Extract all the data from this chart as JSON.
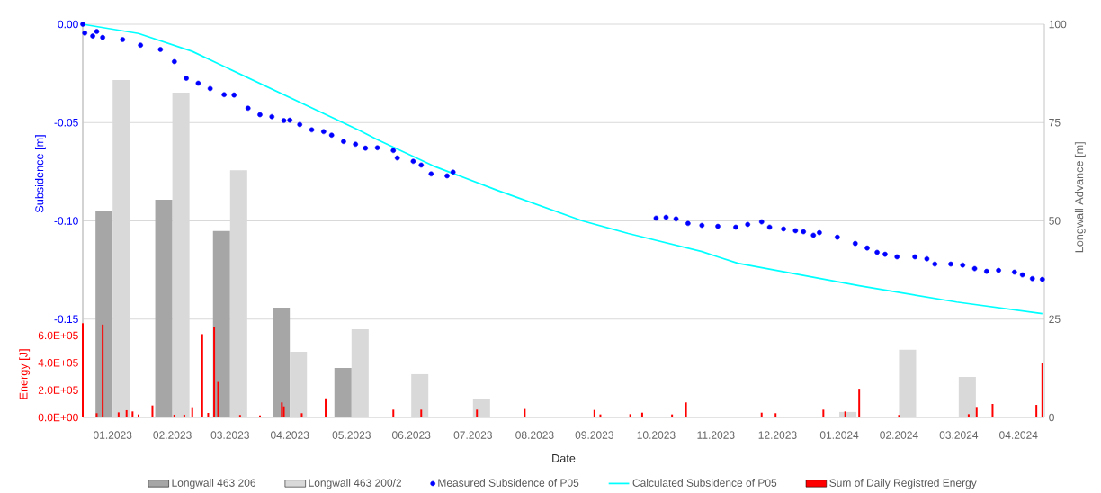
{
  "chart_data": {
    "type": "bar",
    "xlabel": "Date",
    "ylabel": "Subsidence [m]",
    "y2label": "Longwall Advance [m]",
    "y3label": "Energy [J]",
    "xlim": [
      "2023-01-01",
      "2024-04-28"
    ],
    "xticks": [
      {
        "value": "2023-01-16",
        "label": "01.2023"
      },
      {
        "value": "2023-02-15",
        "label": "02.2023"
      },
      {
        "value": "2023-03-16",
        "label": "03.2023"
      },
      {
        "value": "2023-04-15",
        "label": "04.2023"
      },
      {
        "value": "2023-05-16",
        "label": "05.2023"
      },
      {
        "value": "2023-06-15",
        "label": "06.2023"
      },
      {
        "value": "2023-07-16",
        "label": "07.2023"
      },
      {
        "value": "2023-08-16",
        "label": "08.2023"
      },
      {
        "value": "2023-09-15",
        "label": "09.2023"
      },
      {
        "value": "2023-10-16",
        "label": "10.2023"
      },
      {
        "value": "2023-11-15",
        "label": "11.2023"
      },
      {
        "value": "2023-12-16",
        "label": "12.2023"
      },
      {
        "value": "2024-01-16",
        "label": "01.2024"
      },
      {
        "value": "2024-02-15",
        "label": "02.2024"
      },
      {
        "value": "2024-03-16",
        "label": "03.2024"
      },
      {
        "value": "2024-04-15",
        "label": "04.2024"
      }
    ],
    "ylim": [
      -0.2,
      0
    ],
    "yticks": [
      {
        "value": 0,
        "label": "0.00"
      },
      {
        "value": -0.05,
        "label": "-0.05"
      },
      {
        "value": -0.1,
        "label": "-0.10"
      },
      {
        "value": -0.15,
        "label": "-0.15"
      }
    ],
    "y2lim": [
      0,
      100
    ],
    "y2ticks": [
      0,
      25,
      50,
      75,
      100
    ],
    "y3lim": [
      0,
      2880000
    ],
    "y3ticks": [
      {
        "value": 0,
        "label": "0.0E+00"
      },
      {
        "value": 200000,
        "label": "2.0E+05"
      },
      {
        "value": 400000,
        "label": "4.0E+05"
      },
      {
        "value": 600000,
        "label": "6.0E+05"
      }
    ],
    "grid": "y",
    "legend": "bottom",
    "series": [
      {
        "name": "Longwall 463 206",
        "axis": "y2",
        "color": "#a6a6a6",
        "x": [
          "2023-01-16",
          "2023-02-15",
          "2023-03-16",
          "2023-04-15",
          "2023-05-16"
        ],
        "values": [
          52.4,
          55.4,
          47.4,
          27.9,
          12.6
        ]
      },
      {
        "name": "Longwall 463 200/2",
        "axis": "y2",
        "color": "#d9d9d9",
        "x": [
          "2023-01-16",
          "2023-02-15",
          "2023-03-16",
          "2023-04-15",
          "2023-05-16",
          "2023-06-15",
          "2023-07-16",
          "2023-08-16",
          "2023-09-15",
          "2023-10-16",
          "2023-11-15",
          "2023-12-16",
          "2024-01-16",
          "2024-02-15",
          "2024-03-16"
        ],
        "values": [
          85.8,
          82.6,
          62.9,
          16.7,
          22.4,
          11.0,
          4.6,
          null,
          null,
          null,
          null,
          null,
          1.4,
          17.2,
          10.3
        ]
      },
      {
        "name": "Measured Subsidence of P05",
        "type": "scatter",
        "axis": "y",
        "color": "#0000ff",
        "marker": "circle",
        "x": [
          "2023-01-01",
          "2023-01-02",
          "2023-01-06",
          "2023-01-08",
          "2023-01-11",
          "2023-01-21",
          "2023-01-30",
          "2023-02-09",
          "2023-02-16",
          "2023-02-22",
          "2023-02-28",
          "2023-03-06",
          "2023-03-13",
          "2023-03-18",
          "2023-03-25",
          "2023-03-31",
          "2023-04-06",
          "2023-04-12",
          "2023-04-15",
          "2023-04-20",
          "2023-04-26",
          "2023-05-02",
          "2023-05-06",
          "2023-05-12",
          "2023-05-18",
          "2023-05-23",
          "2023-05-29",
          "2023-06-06",
          "2023-06-08",
          "2023-06-16",
          "2023-06-20",
          "2023-06-25",
          "2023-07-03",
          "2023-07-06",
          "2023-10-16",
          "2023-10-21",
          "2023-10-26",
          "2023-11-01",
          "2023-11-08",
          "2023-11-16",
          "2023-11-25",
          "2023-12-01",
          "2023-12-08",
          "2023-12-12",
          "2023-12-19",
          "2023-12-25",
          "2023-12-29",
          "2024-01-03",
          "2024-01-06",
          "2024-01-15",
          "2024-01-24",
          "2024-01-30",
          "2024-02-04",
          "2024-02-08",
          "2024-02-14",
          "2024-02-23",
          "2024-02-29",
          "2024-03-04",
          "2024-03-12",
          "2024-03-18",
          "2024-03-24",
          "2024-03-30",
          "2024-04-05",
          "2024-04-13",
          "2024-04-17",
          "2024-04-22",
          "2024-04-27"
        ],
        "values": [
          0,
          -0.0045,
          -0.006,
          -0.0037,
          -0.0067,
          -0.0078,
          -0.0106,
          -0.0128,
          -0.019,
          -0.0275,
          -0.03,
          -0.0327,
          -0.0358,
          -0.036,
          -0.0427,
          -0.046,
          -0.047,
          -0.049,
          -0.0488,
          -0.051,
          -0.0537,
          -0.0546,
          -0.0564,
          -0.0596,
          -0.061,
          -0.063,
          -0.0628,
          -0.0642,
          -0.068,
          -0.0697,
          -0.0716,
          -0.0761,
          -0.0771,
          -0.0752,
          -0.0986,
          -0.0982,
          -0.099,
          -0.1013,
          -0.1023,
          -0.1028,
          -0.1032,
          -0.1018,
          -0.1005,
          -0.1032,
          -0.1041,
          -0.105,
          -0.1055,
          -0.1073,
          -0.106,
          -0.1083,
          -0.1115,
          -0.1138,
          -0.116,
          -0.117,
          -0.1183,
          -0.1183,
          -0.1193,
          -0.122,
          -0.122,
          -0.1225,
          -0.1243,
          -0.1257,
          -0.1252,
          -0.1261,
          -0.1275,
          -0.1294,
          -0.1298
        ]
      },
      {
        "name": "Calculated Subsidence of P05",
        "type": "line",
        "axis": "y",
        "color": "#00ffff",
        "x": [
          "2023-01-01",
          "2023-01-29",
          "2023-02-25",
          "2023-05-20",
          "2023-05-29",
          "2023-06-26",
          "2023-07-28",
          "2023-09-09",
          "2023-10-02",
          "2023-11-08",
          "2023-11-16",
          "2023-11-26",
          "2024-01-26",
          "2024-03-15",
          "2024-04-27"
        ],
        "values": [
          0,
          -0.0047,
          -0.0138,
          -0.054,
          -0.0587,
          -0.072,
          -0.0844,
          -0.1,
          -0.1064,
          -0.1156,
          -0.1183,
          -0.1216,
          -0.133,
          -0.1413,
          -0.1472
        ]
      },
      {
        "name": "Sum of Daily Registred Energy",
        "axis": "y3",
        "color": "#ff0000",
        "x": [
          "2023-01-01",
          "2023-01-08",
          "2023-01-11",
          "2023-01-19",
          "2023-01-23",
          "2023-01-26",
          "2023-01-29",
          "2023-02-05",
          "2023-02-16",
          "2023-02-21",
          "2023-02-25",
          "2023-03-02",
          "2023-03-05",
          "2023-03-08",
          "2023-03-10",
          "2023-03-21",
          "2023-03-31",
          "2023-04-11",
          "2023-04-12",
          "2023-04-21",
          "2023-05-03",
          "2023-06-06",
          "2023-06-20",
          "2023-07-18",
          "2023-08-11",
          "2023-09-15",
          "2023-09-18",
          "2023-10-03",
          "2023-10-09",
          "2023-10-24",
          "2023-10-31",
          "2023-12-08",
          "2023-12-15",
          "2024-01-08",
          "2024-01-19",
          "2024-01-26",
          "2024-02-15",
          "2024-03-21",
          "2024-03-25",
          "2024-04-02",
          "2024-04-24",
          "2024-04-27"
        ],
        "values": [
          690000,
          31000,
          680000,
          37000,
          53000,
          44000,
          22000,
          88000,
          20000,
          20000,
          75000,
          610000,
          33000,
          660000,
          260000,
          18000,
          15000,
          110000,
          81000,
          31000,
          140000,
          57000,
          57000,
          57000,
          62000,
          55000,
          22000,
          24000,
          35000,
          22000,
          110000,
          35000,
          31000,
          57000,
          44000,
          210000,
          18000,
          24000,
          77000,
          99000,
          92000,
          400000
        ]
      }
    ]
  }
}
